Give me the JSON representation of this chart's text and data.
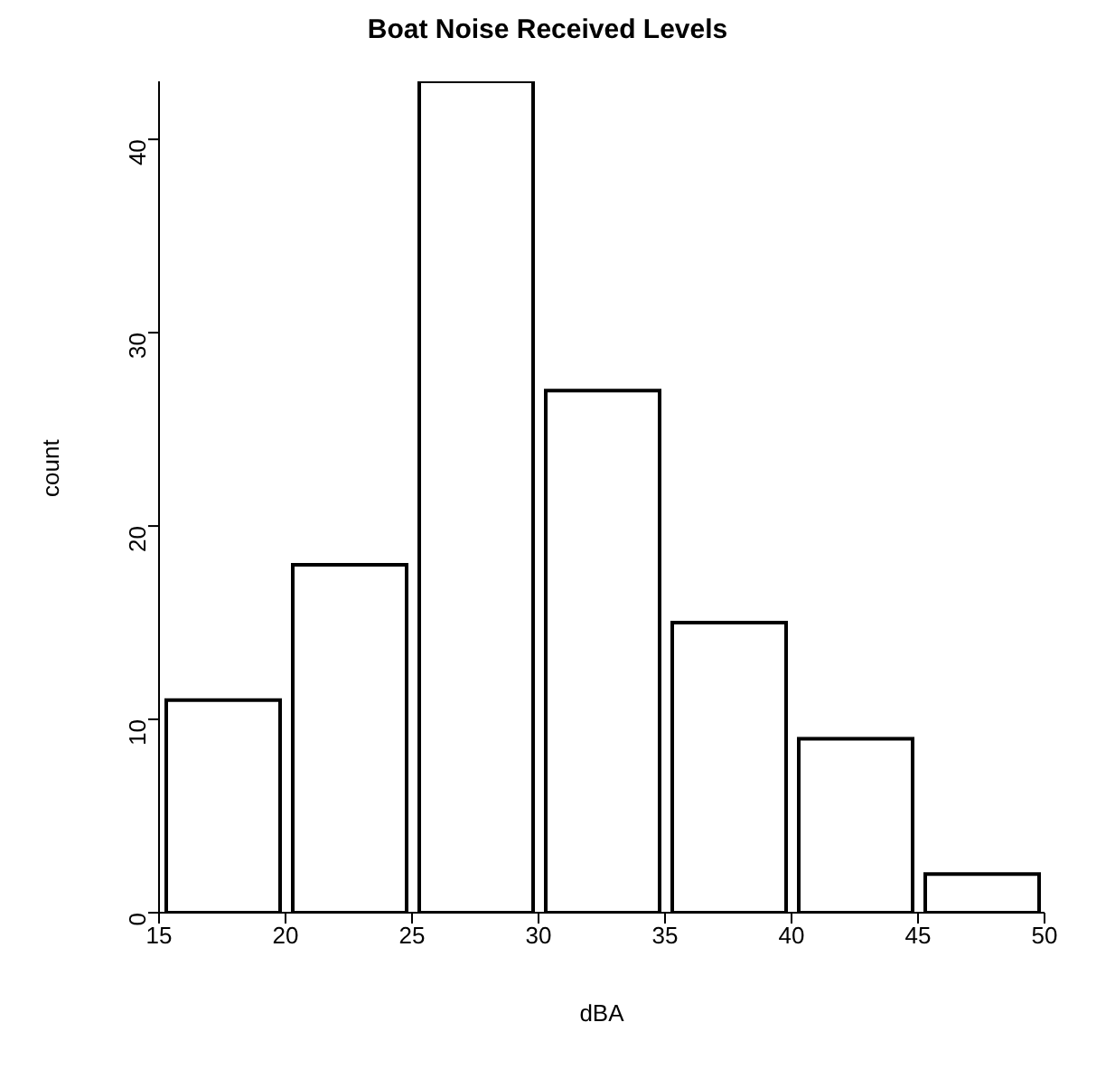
{
  "chart_data": {
    "type": "histogram",
    "title": "Boat Noise Received Levels",
    "xlabel": "dBA",
    "ylabel": "count",
    "bins": [
      15,
      20,
      25,
      30,
      35,
      40,
      45,
      50
    ],
    "values": [
      11,
      18,
      43,
      27,
      15,
      9,
      2
    ],
    "color": "#ffffff",
    "xlim": [
      15,
      50
    ],
    "xticks": [
      15,
      20,
      25,
      30,
      35,
      40,
      45,
      50
    ],
    "ylim": [
      0,
      43
    ],
    "yticks": [
      0,
      10,
      20,
      30,
      40
    ],
    "grid": false,
    "legend": false
  }
}
